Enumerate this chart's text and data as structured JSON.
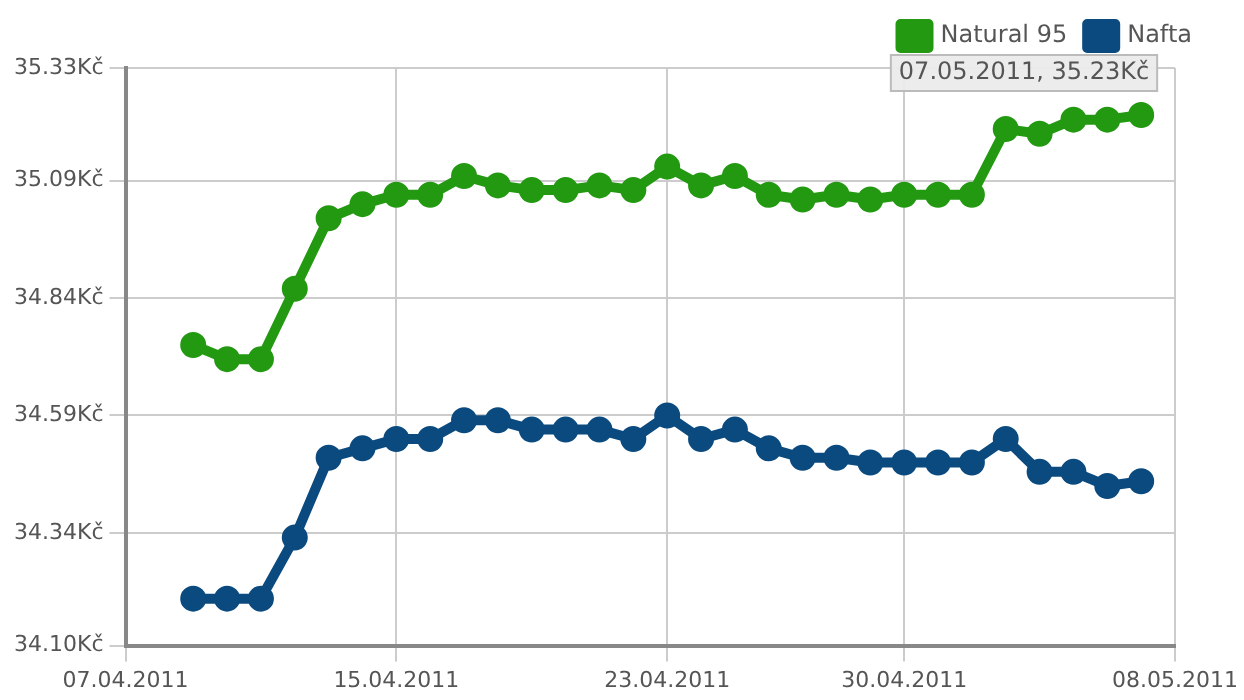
{
  "chart_data": {
    "type": "line",
    "x": [
      "2011-04-09",
      "2011-04-10",
      "2011-04-11",
      "2011-04-12",
      "2011-04-13",
      "2011-04-14",
      "2011-04-15",
      "2011-04-16",
      "2011-04-17",
      "2011-04-18",
      "2011-04-19",
      "2011-04-20",
      "2011-04-21",
      "2011-04-22",
      "2011-04-23",
      "2011-04-24",
      "2011-04-25",
      "2011-04-26",
      "2011-04-27",
      "2011-04-28",
      "2011-04-29",
      "2011-04-30",
      "2011-05-01",
      "2011-05-02",
      "2011-05-03",
      "2011-05-04",
      "2011-05-05",
      "2011-05-06",
      "2011-05-07"
    ],
    "series": [
      {
        "name": "Natural 95",
        "color": "#229911",
        "values": [
          34.74,
          34.71,
          34.71,
          34.86,
          35.01,
          35.04,
          35.06,
          35.06,
          35.1,
          35.08,
          35.07,
          35.07,
          35.08,
          35.07,
          35.12,
          35.08,
          35.1,
          35.06,
          35.05,
          35.06,
          35.05,
          35.06,
          35.06,
          35.06,
          35.2,
          35.19,
          35.22,
          35.22,
          35.23
        ]
      },
      {
        "name": "Nafta",
        "color": "#0b4a7f",
        "values": [
          34.2,
          34.2,
          34.2,
          34.33,
          34.5,
          34.52,
          34.54,
          34.54,
          34.58,
          34.58,
          34.56,
          34.56,
          34.56,
          34.54,
          34.59,
          34.54,
          34.56,
          34.52,
          34.5,
          34.5,
          34.49,
          34.49,
          34.49,
          34.49,
          34.54,
          34.47,
          34.47,
          34.44,
          34.45
        ]
      }
    ],
    "xlim": [
      "2011-04-07",
      "2011-05-08"
    ],
    "xticks": [
      {
        "value": "2011-04-07",
        "label": "07.04.2011"
      },
      {
        "value": "2011-04-15",
        "label": "15.04.2011"
      },
      {
        "value": "2011-04-23",
        "label": "23.04.2011"
      },
      {
        "value": "2011-04-30",
        "label": "30.04.2011"
      },
      {
        "value": "2011-05-08",
        "label": "08.05.2011"
      }
    ],
    "ylim": [
      34.1,
      35.33
    ],
    "yticks": [
      {
        "value": 34.1,
        "label": "34.10Kč"
      },
      {
        "value": 34.34,
        "label": "34.34Kč"
      },
      {
        "value": 34.59,
        "label": "34.59Kč"
      },
      {
        "value": 34.84,
        "label": "34.84Kč"
      },
      {
        "value": 35.09,
        "label": "35.09Kč"
      },
      {
        "value": 35.33,
        "label": "35.33Kč"
      }
    ],
    "annotations": [
      {
        "text": "07.05.2011, 35.23Kč",
        "x": "2011-05-07",
        "y": 35.23
      }
    ],
    "grid": true,
    "legend": "top right",
    "marker": "circle",
    "line_style": "solid"
  }
}
